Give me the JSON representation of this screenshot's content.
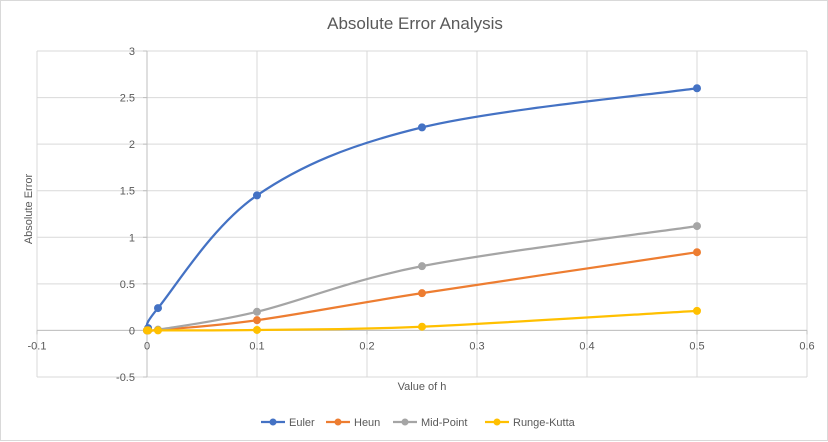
{
  "chart_data": {
    "type": "scatter",
    "title": "Absolute Error Analysis",
    "xlabel": "Value of h",
    "ylabel": "Absolute Error",
    "xlim": [
      -0.1,
      0.6
    ],
    "ylim": [
      -0.5,
      3
    ],
    "xticks": [
      -0.1,
      0,
      0.1,
      0.2,
      0.3,
      0.4,
      0.5,
      0.6
    ],
    "xtick_labels": [
      "-0.1",
      "0",
      "0.1",
      "0.2",
      "0.3",
      "0.4",
      "0.5",
      "0.6"
    ],
    "yticks": [
      -0.5,
      0,
      0.5,
      1,
      1.5,
      2,
      2.5,
      3
    ],
    "ytick_labels": [
      "-0.5",
      "0",
      "0.5",
      "1",
      "1.5",
      "2",
      "2.5",
      "3"
    ],
    "grid": true,
    "smooth_lines": true,
    "legend_position": "bottom",
    "series": [
      {
        "name": "Euler",
        "color": "#4472C4",
        "x": [
          0,
          0.001,
          0.01,
          0.1,
          0.25,
          0.5
        ],
        "y": [
          0,
          0.025,
          0.24,
          1.45,
          2.18,
          2.6
        ]
      },
      {
        "name": "Heun",
        "color": "#ED7D31",
        "x": [
          0,
          0.001,
          0.01,
          0.1,
          0.25,
          0.5
        ],
        "y": [
          0,
          0.0001,
          0.005,
          0.11,
          0.4,
          0.84
        ]
      },
      {
        "name": "Mid-Point",
        "color": "#A5A5A5",
        "x": [
          0,
          0.001,
          0.01,
          0.1,
          0.25,
          0.5
        ],
        "y": [
          0,
          0.0002,
          0.008,
          0.2,
          0.69,
          1.12
        ]
      },
      {
        "name": "Runge-Kutta",
        "color": "#FFC000",
        "x": [
          0,
          0.001,
          0.01,
          0.1,
          0.25,
          0.5
        ],
        "y": [
          0,
          0,
          0.0001,
          0.005,
          0.04,
          0.21
        ]
      }
    ]
  }
}
